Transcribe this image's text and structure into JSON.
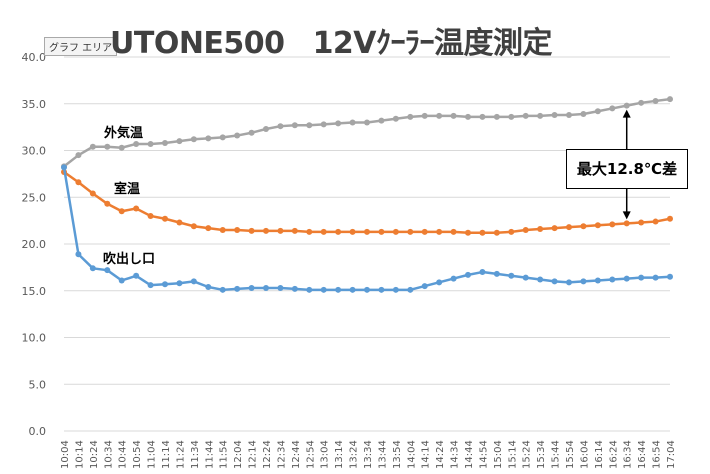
{
  "title_left": "UTONE500",
  "title_right": "12Vｸｰﾗｰ温度測定",
  "chart_area_tag": "グラフ エリア",
  "callout": "最大12.8℃差",
  "chart_data": {
    "type": "line",
    "title": "UTONE500 12Vｸｰﾗｰ温度測定",
    "ylim": [
      0,
      40
    ],
    "y_ticks": [
      "0.0",
      "5.0",
      "10.0",
      "15.0",
      "20.0",
      "25.0",
      "30.0",
      "35.0",
      "40.0"
    ],
    "grid": true,
    "x": [
      "10:04",
      "10:14",
      "10:24",
      "10:34",
      "10:44",
      "10:54",
      "11:04",
      "11:14",
      "11:24",
      "11:34",
      "11:44",
      "11:54",
      "12:04",
      "12:14",
      "12:24",
      "12:34",
      "12:44",
      "12:54",
      "13:04",
      "13:14",
      "13:24",
      "13:34",
      "13:44",
      "13:54",
      "14:04",
      "14:14",
      "14:24",
      "14:34",
      "14:44",
      "14:54",
      "15:04",
      "15:14",
      "15:24",
      "15:34",
      "15:44",
      "15:54",
      "16:04",
      "16:14",
      "16:24",
      "16:34",
      "16:44",
      "16:54",
      "17:04"
    ],
    "series": [
      {
        "name": "外気温",
        "color": "#a5a5a5",
        "values": [
          28.3,
          29.5,
          30.4,
          30.4,
          30.3,
          30.7,
          30.7,
          30.8,
          31.0,
          31.2,
          31.3,
          31.4,
          31.6,
          31.9,
          32.3,
          32.6,
          32.7,
          32.7,
          32.8,
          32.9,
          33.0,
          33.0,
          33.2,
          33.4,
          33.6,
          33.7,
          33.7,
          33.7,
          33.6,
          33.6,
          33.6,
          33.6,
          33.7,
          33.7,
          33.8,
          33.8,
          33.9,
          34.2,
          34.5,
          34.8,
          35.1,
          35.3,
          35.5
        ]
      },
      {
        "name": "室温",
        "color": "#ed7d31",
        "values": [
          27.7,
          26.6,
          25.4,
          24.3,
          23.5,
          23.8,
          23.0,
          22.7,
          22.3,
          21.9,
          21.7,
          21.5,
          21.5,
          21.4,
          21.4,
          21.4,
          21.4,
          21.3,
          21.3,
          21.3,
          21.3,
          21.3,
          21.3,
          21.3,
          21.3,
          21.3,
          21.3,
          21.3,
          21.2,
          21.2,
          21.2,
          21.3,
          21.5,
          21.6,
          21.7,
          21.8,
          21.9,
          22.0,
          22.1,
          22.2,
          22.3,
          22.4,
          22.7
        ]
      },
      {
        "name": "吹出し口",
        "color": "#5b9bd5",
        "values": [
          28.2,
          18.9,
          17.4,
          17.2,
          16.1,
          16.6,
          15.6,
          15.7,
          15.8,
          16.0,
          15.4,
          15.1,
          15.2,
          15.3,
          15.3,
          15.3,
          15.2,
          15.1,
          15.1,
          15.1,
          15.1,
          15.1,
          15.1,
          15.1,
          15.1,
          15.5,
          15.9,
          16.3,
          16.7,
          17.0,
          16.8,
          16.6,
          16.4,
          16.2,
          16.0,
          15.9,
          16.0,
          16.1,
          16.2,
          16.3,
          16.4,
          16.4,
          16.5
        ]
      }
    ]
  }
}
